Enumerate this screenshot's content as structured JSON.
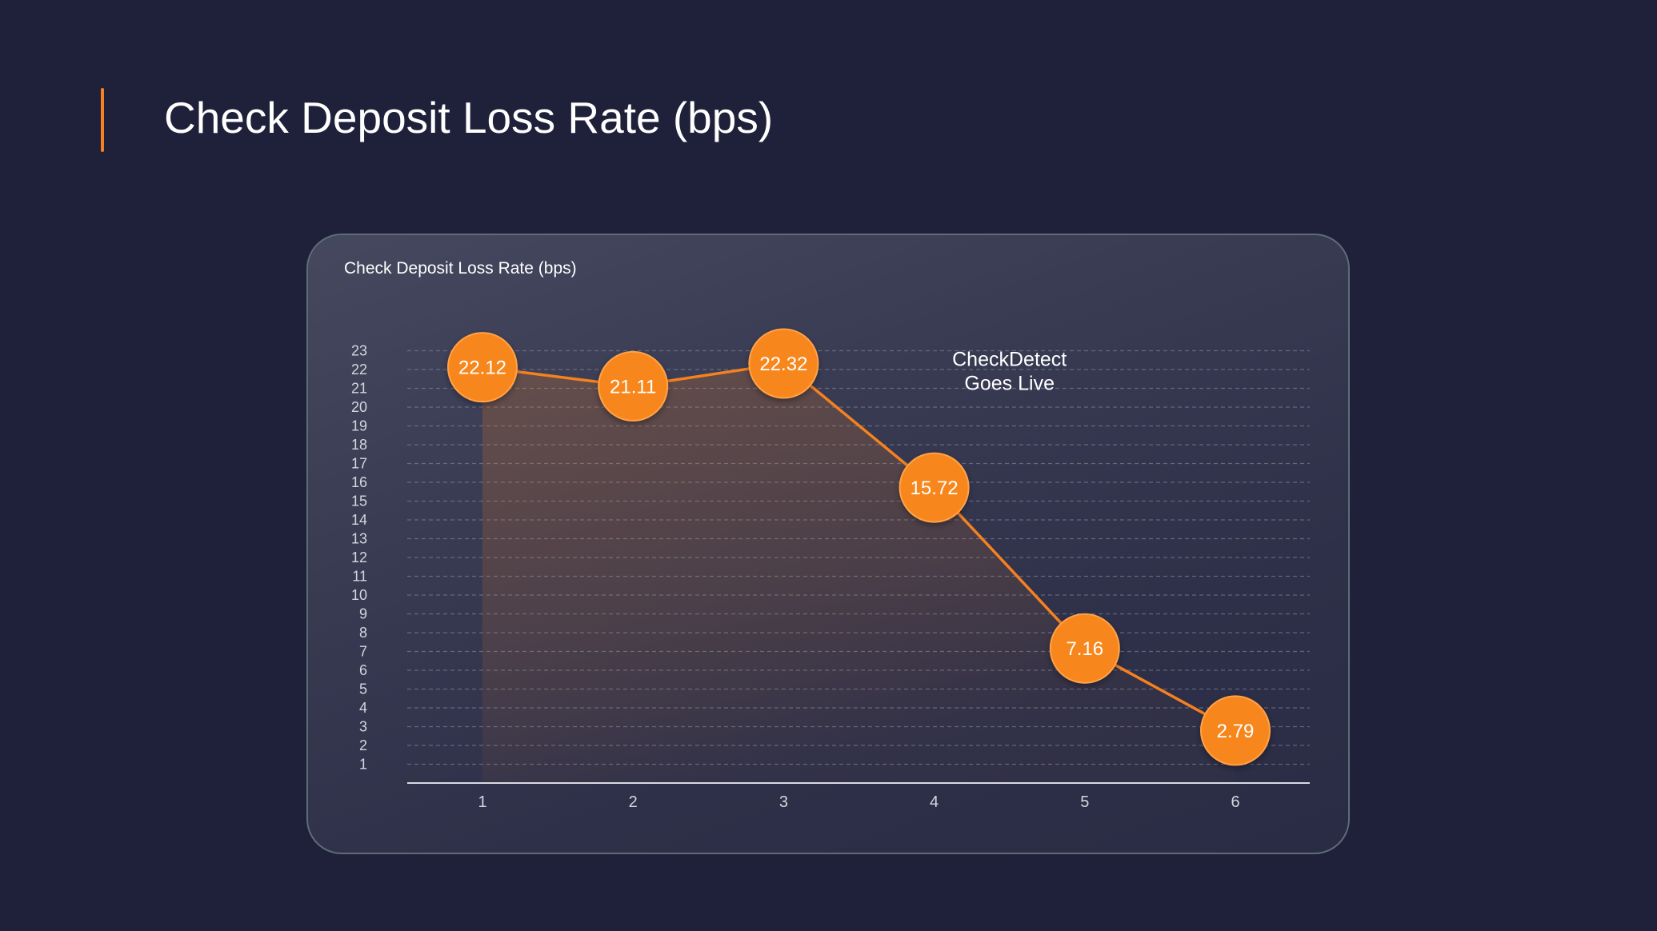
{
  "page": {
    "title": "Check Deposit Loss Rate (bps)"
  },
  "colors": {
    "background": "#1f2039",
    "accent": "#f5811f",
    "marker": "#f7871f",
    "marker_border": "#ffa24a",
    "line": "#f5811f",
    "grid": "#8a8fa3",
    "axis": "#d8dae3",
    "text": "#ffffff"
  },
  "chart_data": {
    "type": "line",
    "title": "Check Deposit Loss Rate (bps)",
    "xlabel": "",
    "ylabel": "",
    "categories": [
      "1",
      "2",
      "3",
      "4",
      "5",
      "6"
    ],
    "series": [
      {
        "name": "Check Deposit Loss Rate (bps)",
        "values": [
          22.12,
          21.11,
          22.32,
          15.72,
          7.16,
          2.79
        ],
        "labels": [
          "22.12",
          "21.11",
          "22.32",
          "15.72",
          "7.16",
          "2.79"
        ]
      }
    ],
    "ylim": [
      0,
      23
    ],
    "yticks": [
      "1",
      "2",
      "3",
      "4",
      "5",
      "6",
      "7",
      "8",
      "9",
      "10",
      "11",
      "12",
      "13",
      "14",
      "15",
      "16",
      "17",
      "18",
      "19",
      "20",
      "21",
      "22",
      "23"
    ],
    "grid": true,
    "area_fill": true,
    "annotations": [
      {
        "line1": "CheckDetect",
        "line2": "Goes Live",
        "x": 4.5,
        "y": 22.2
      }
    ]
  }
}
